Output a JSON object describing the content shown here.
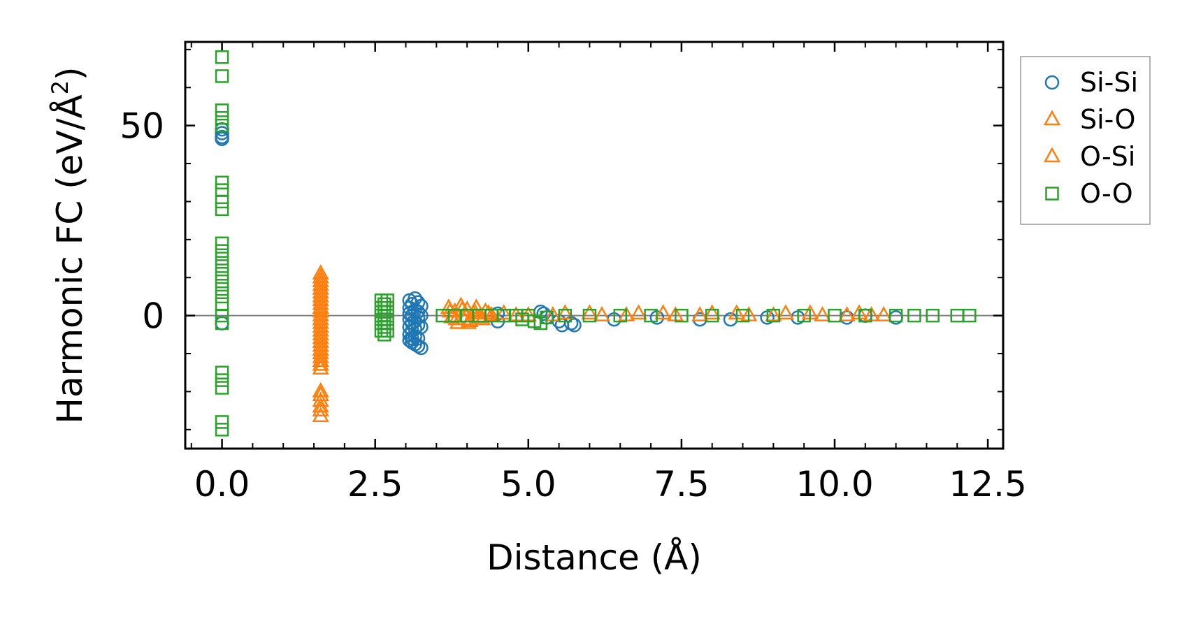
{
  "chart_data": {
    "type": "scatter",
    "title": "",
    "xlabel": "Distance (Å)",
    "ylabel": "Harmonic FC (eV/Å²)",
    "ylabel_parts": {
      "main": "Harmonic FC (eV/Å",
      "sup": "2",
      "close": ")"
    },
    "xlim": [
      -0.6,
      12.75
    ],
    "ylim": [
      -35,
      72
    ],
    "xticks": [
      0.0,
      2.5,
      5.0,
      7.5,
      10.0,
      12.5
    ],
    "xtick_labels": [
      "0.0",
      "2.5",
      "5.0",
      "7.5",
      "10.0",
      "12.5"
    ],
    "yticks": [
      0,
      50
    ],
    "ytick_labels": [
      "0",
      "50"
    ],
    "zero_line": true,
    "grid": false,
    "legend_position": "top-right, outside plot",
    "series": [
      {
        "name": "Si-Si",
        "marker": "circle",
        "color": "#1f77b4",
        "points": [
          [
            0.0,
            49.0
          ],
          [
            0.0,
            48.0
          ],
          [
            0.0,
            47.0
          ],
          [
            0.0,
            46.5
          ],
          [
            0.0,
            -2.0
          ],
          [
            3.06,
            4.0
          ],
          [
            3.06,
            2.0
          ],
          [
            3.06,
            0.5
          ],
          [
            3.06,
            -1.0
          ],
          [
            3.06,
            -3.0
          ],
          [
            3.06,
            -5.0
          ],
          [
            3.06,
            -6.5
          ],
          [
            3.1,
            3.0
          ],
          [
            3.1,
            0.0
          ],
          [
            3.1,
            -2.0
          ],
          [
            3.1,
            -4.0
          ],
          [
            3.1,
            -6.0
          ],
          [
            3.1,
            -7.0
          ],
          [
            3.15,
            4.5
          ],
          [
            3.15,
            1.5
          ],
          [
            3.15,
            -1.5
          ],
          [
            3.15,
            -3.5
          ],
          [
            3.15,
            -5.5
          ],
          [
            3.15,
            -7.5
          ],
          [
            3.2,
            3.5
          ],
          [
            3.2,
            1.0
          ],
          [
            3.2,
            -0.5
          ],
          [
            3.2,
            -2.5
          ],
          [
            3.2,
            -6.0
          ],
          [
            3.2,
            -8.0
          ],
          [
            3.25,
            2.5
          ],
          [
            3.25,
            0.0
          ],
          [
            3.25,
            -3.0
          ],
          [
            3.25,
            -8.5
          ],
          [
            4.5,
            0.5
          ],
          [
            4.5,
            -1.5
          ],
          [
            5.2,
            1.0
          ],
          [
            5.25,
            0.5
          ],
          [
            5.3,
            -0.5
          ],
          [
            5.5,
            -1.5
          ],
          [
            5.55,
            -2.5
          ],
          [
            5.7,
            -2.0
          ],
          [
            5.75,
            -2.5
          ],
          [
            6.4,
            -1.0
          ],
          [
            7.1,
            -0.5
          ],
          [
            7.8,
            -1.0
          ],
          [
            8.3,
            -1.0
          ],
          [
            8.9,
            -0.5
          ],
          [
            9.4,
            -0.5
          ],
          [
            10.2,
            -0.5
          ],
          [
            10.5,
            0.0
          ],
          [
            11.0,
            -0.5
          ]
        ]
      },
      {
        "name": "Si-O",
        "marker": "triangle",
        "color": "#ff7f0e",
        "points": [
          [
            1.61,
            11.0
          ],
          [
            1.61,
            9.0
          ],
          [
            1.61,
            7.0
          ],
          [
            1.61,
            5.0
          ],
          [
            1.61,
            3.0
          ],
          [
            1.61,
            1.0
          ],
          [
            1.61,
            -1.0
          ],
          [
            1.61,
            -3.0
          ],
          [
            1.61,
            -5.0
          ],
          [
            1.61,
            -7.0
          ],
          [
            1.61,
            -9.0
          ],
          [
            1.61,
            -11.0
          ],
          [
            1.61,
            -13.0
          ],
          [
            1.61,
            -20.0
          ],
          [
            1.61,
            -22.5
          ],
          [
            1.61,
            -25.0
          ],
          [
            1.61,
            -26.5
          ],
          [
            3.7,
            2.0
          ],
          [
            3.75,
            -0.5
          ],
          [
            3.8,
            1.0
          ],
          [
            3.85,
            -2.0
          ],
          [
            3.9,
            2.5
          ],
          [
            3.95,
            -1.0
          ],
          [
            4.0,
            1.5
          ],
          [
            4.05,
            -1.5
          ],
          [
            4.1,
            0.5
          ],
          [
            4.15,
            2.0
          ],
          [
            4.2,
            -0.5
          ],
          [
            4.3,
            1.0
          ],
          [
            4.4,
            0.0
          ],
          [
            4.6,
            0.5
          ],
          [
            5.0,
            0.0
          ],
          [
            5.6,
            0.5
          ],
          [
            6.2,
            0.0
          ],
          [
            6.8,
            0.5
          ],
          [
            7.4,
            0.0
          ],
          [
            8.0,
            0.5
          ],
          [
            8.6,
            0.0
          ],
          [
            9.2,
            0.5
          ],
          [
            9.8,
            0.0
          ],
          [
            10.4,
            0.5
          ],
          [
            10.8,
            0.0
          ]
        ]
      },
      {
        "name": "O-Si",
        "marker": "triangle",
        "color": "#ff7f0e",
        "points": [
          [
            1.61,
            10.0
          ],
          [
            1.61,
            8.0
          ],
          [
            1.61,
            6.0
          ],
          [
            1.61,
            4.0
          ],
          [
            1.61,
            2.0
          ],
          [
            1.61,
            0.0
          ],
          [
            1.61,
            -2.0
          ],
          [
            1.61,
            -4.0
          ],
          [
            1.61,
            -6.0
          ],
          [
            1.61,
            -8.0
          ],
          [
            1.61,
            -10.0
          ],
          [
            1.61,
            -12.0
          ],
          [
            1.61,
            -14.0
          ],
          [
            1.61,
            -21.0
          ],
          [
            1.61,
            -24.0
          ],
          [
            3.72,
            1.0
          ],
          [
            3.82,
            -1.0
          ],
          [
            3.92,
            1.5
          ],
          [
            4.02,
            -2.0
          ],
          [
            4.12,
            1.0
          ],
          [
            4.25,
            -1.0
          ],
          [
            4.35,
            0.5
          ],
          [
            4.8,
            0.0
          ],
          [
            5.4,
            0.0
          ],
          [
            6.0,
            0.5
          ],
          [
            6.6,
            0.0
          ],
          [
            7.2,
            0.5
          ],
          [
            7.8,
            0.0
          ],
          [
            8.4,
            0.5
          ],
          [
            9.0,
            0.0
          ],
          [
            9.6,
            0.5
          ],
          [
            10.2,
            0.0
          ],
          [
            10.6,
            0.0
          ]
        ]
      },
      {
        "name": "O-O",
        "marker": "square",
        "color": "#2ca02c",
        "points": [
          [
            0.0,
            68.0
          ],
          [
            0.0,
            63.0
          ],
          [
            0.0,
            54.0
          ],
          [
            0.0,
            52.0
          ],
          [
            0.0,
            50.0
          ],
          [
            0.0,
            35.0
          ],
          [
            0.0,
            33.0
          ],
          [
            0.0,
            30.0
          ],
          [
            0.0,
            28.0
          ],
          [
            0.0,
            19.0
          ],
          [
            0.0,
            17.0
          ],
          [
            0.0,
            15.0
          ],
          [
            0.0,
            13.0
          ],
          [
            0.0,
            11.0
          ],
          [
            0.0,
            9.0
          ],
          [
            0.0,
            7.0
          ],
          [
            0.0,
            5.0
          ],
          [
            0.0,
            3.0
          ],
          [
            0.0,
            0.0
          ],
          [
            0.0,
            -2.0
          ],
          [
            0.0,
            -15.0
          ],
          [
            0.0,
            -17.0
          ],
          [
            0.0,
            -19.0
          ],
          [
            0.0,
            -28.0
          ],
          [
            0.0,
            -30.0
          ],
          [
            2.6,
            4.0
          ],
          [
            2.6,
            2.0
          ],
          [
            2.6,
            0.0
          ],
          [
            2.6,
            -2.0
          ],
          [
            2.6,
            -4.0
          ],
          [
            2.65,
            3.0
          ],
          [
            2.65,
            1.0
          ],
          [
            2.65,
            -1.0
          ],
          [
            2.65,
            -3.0
          ],
          [
            2.65,
            -5.0
          ],
          [
            2.7,
            4.0
          ],
          [
            2.7,
            2.0
          ],
          [
            2.7,
            0.0
          ],
          [
            2.7,
            -2.0
          ],
          [
            2.7,
            -4.0
          ],
          [
            3.6,
            0.0
          ],
          [
            3.8,
            0.0
          ],
          [
            4.0,
            0.0
          ],
          [
            4.2,
            0.0
          ],
          [
            4.4,
            0.0
          ],
          [
            4.6,
            0.0
          ],
          [
            4.8,
            0.0
          ],
          [
            4.9,
            -1.0
          ],
          [
            5.0,
            0.0
          ],
          [
            5.1,
            -1.5
          ],
          [
            5.2,
            -2.0
          ],
          [
            5.3,
            -0.5
          ],
          [
            5.6,
            0.0
          ],
          [
            6.0,
            0.0
          ],
          [
            6.5,
            0.0
          ],
          [
            7.0,
            0.0
          ],
          [
            7.5,
            0.0
          ],
          [
            8.0,
            0.0
          ],
          [
            8.5,
            0.0
          ],
          [
            9.0,
            0.0
          ],
          [
            9.5,
            0.0
          ],
          [
            10.0,
            0.0
          ],
          [
            10.5,
            0.0
          ],
          [
            11.0,
            0.0
          ],
          [
            11.3,
            0.0
          ],
          [
            11.6,
            0.0
          ],
          [
            12.0,
            0.0
          ],
          [
            12.2,
            0.0
          ]
        ]
      }
    ]
  }
}
